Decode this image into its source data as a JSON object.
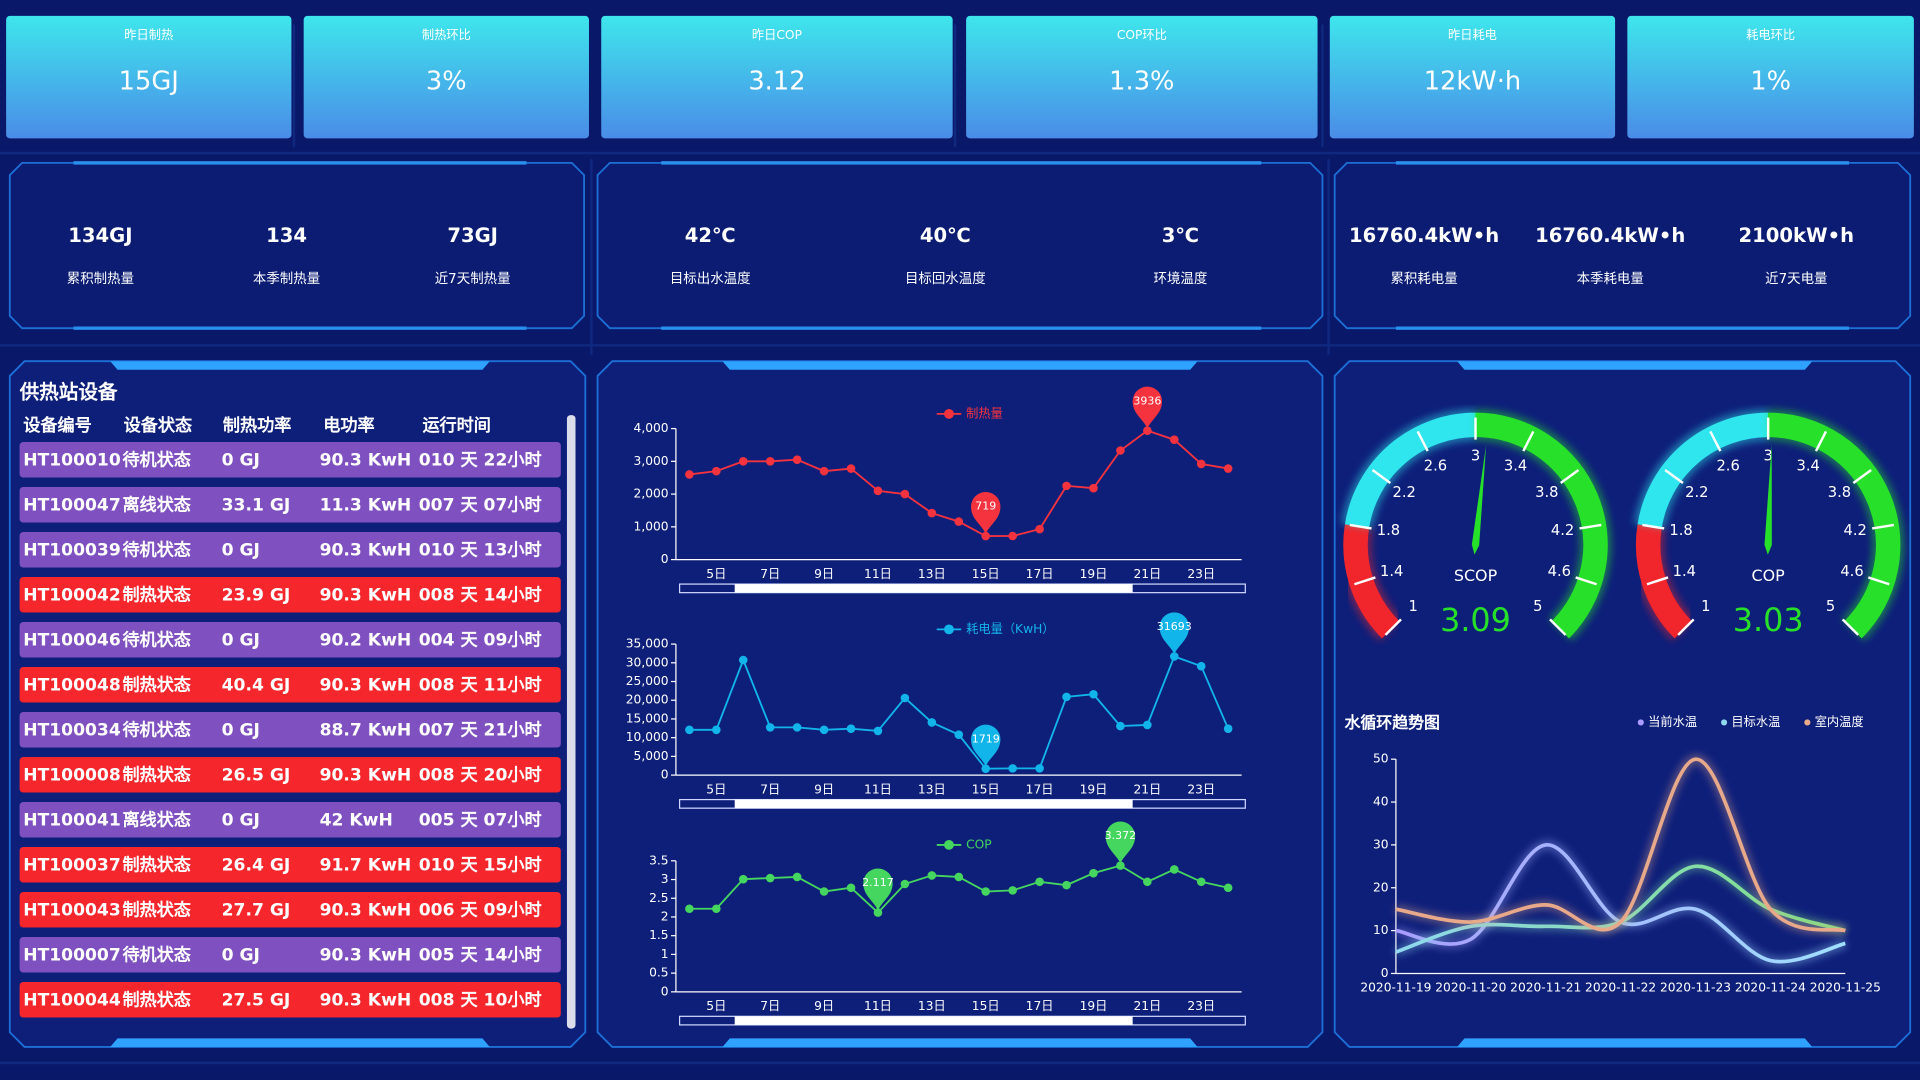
{
  "kpis": [
    {
      "label": "昨日制热",
      "value": "15GJ"
    },
    {
      "label": "制热环比",
      "value": "3%"
    },
    {
      "label": "昨日COP",
      "value": "3.12"
    },
    {
      "label": "COP环比",
      "value": "1.3%"
    },
    {
      "label": "昨日耗电",
      "value": "12kW·h"
    },
    {
      "label": "耗电环比",
      "value": "1%"
    }
  ],
  "stats": [
    [
      {
        "value": "134GJ",
        "label": "累积制热量"
      },
      {
        "value": "134",
        "label": "本季制热量"
      },
      {
        "value": "73GJ",
        "label": "近7天制热量"
      }
    ],
    [
      {
        "value": "42℃",
        "label": "目标出水温度"
      },
      {
        "value": "40℃",
        "label": "目标回水温度"
      },
      {
        "value": "3℃",
        "label": "环境温度"
      }
    ],
    [
      {
        "value": "16760.4kW•h",
        "label": "累积耗电量"
      },
      {
        "value": "16760.4kW•h",
        "label": "本季耗电量"
      },
      {
        "value": "2100kW•h",
        "label": "近7天电量"
      }
    ]
  ],
  "table": {
    "title": "供热站设备",
    "headers": [
      "设备编号",
      "设备状态",
      "制热功率",
      "电功率",
      "运行时间"
    ],
    "rows": [
      [
        "HT100010",
        "待机状态",
        "0 GJ",
        "90.3 KwH",
        "010 天 22小时"
      ],
      [
        "HT100047",
        "离线状态",
        "33.1 GJ",
        "11.3 KwH",
        "007 天 07小时"
      ],
      [
        "HT100039",
        "待机状态",
        "0 GJ",
        "90.3 KwH",
        "010 天 13小时"
      ],
      [
        "HT100042",
        "制热状态",
        "23.9 GJ",
        "90.3 KwH",
        "008 天 14小时"
      ],
      [
        "HT100046",
        "待机状态",
        "0 GJ",
        "90.2 KwH",
        "004 天 09小时"
      ],
      [
        "HT100048",
        "制热状态",
        "40.4 GJ",
        "90.3 KwH",
        "008 天 11小时"
      ],
      [
        "HT100034",
        "待机状态",
        "0 GJ",
        "88.7 KwH",
        "007 天 21小时"
      ],
      [
        "HT100008",
        "制热状态",
        "26.5 GJ",
        "90.3 KwH",
        "008 天 20小时"
      ],
      [
        "HT100041",
        "离线状态",
        "0 GJ",
        "42 KwH",
        "005 天 07小时"
      ],
      [
        "HT100037",
        "制热状态",
        "26.4 GJ",
        "91.7 KwH",
        "010 天 15小时"
      ],
      [
        "HT100043",
        "制热状态",
        "27.7 GJ",
        "90.3 KwH",
        "006 天 09小时"
      ],
      [
        "HT100007",
        "待机状态",
        "0 GJ",
        "90.3 KwH",
        "005 天 14小时"
      ],
      [
        "HT100044",
        "制热状态",
        "27.5 GJ",
        "90.3 KwH",
        "008 天 10小时"
      ]
    ],
    "row_colors": [
      "#7f51c0",
      "#7f51c0",
      "#7f51c0",
      "#f5262c",
      "#7f51c0",
      "#f5262c",
      "#7f51c0",
      "#f5262c",
      "#7f51c0",
      "#f5262c",
      "#f5262c",
      "#7f51c0",
      "#f5262c"
    ]
  },
  "chart_data": [
    {
      "type": "line",
      "pins": true,
      "categories": [
        null,
        "5日",
        null,
        "7日",
        null,
        "9日",
        null,
        "11日",
        null,
        "13日",
        null,
        "15日",
        null,
        "17日",
        null,
        "19日",
        null,
        "21日",
        null,
        "23日",
        null
      ],
      "series": [
        {
          "name": "制热量",
          "color": "#f5333f",
          "values": [
            2600,
            2700,
            3000,
            3000,
            3050,
            2700,
            2780,
            2100,
            2000,
            1420,
            1160,
            719,
            720,
            930,
            2250,
            2180,
            3330,
            3936,
            3660,
            2920,
            2780
          ]
        }
      ],
      "ylim": [
        0,
        4000
      ],
      "yticks": [
        0,
        {
          "value": 1000,
          "label": "1,000"
        },
        {
          "value": 2000,
          "label": "2,000"
        },
        {
          "value": 3000,
          "label": "3,000"
        },
        {
          "value": 4000,
          "label": "4,000"
        }
      ]
    },
    {
      "type": "line",
      "pins": true,
      "categories": [
        null,
        "5日",
        null,
        "7日",
        null,
        "9日",
        null,
        "11日",
        null,
        "13日",
        null,
        "15日",
        null,
        "17日",
        null,
        "19日",
        null,
        "21日",
        null,
        "23日",
        null
      ],
      "series": [
        {
          "name": "耗电量（KwH）",
          "color": "#12b5ea",
          "values": [
            12100,
            12100,
            30750,
            12750,
            12750,
            12100,
            12400,
            11800,
            20600,
            14070,
            10800,
            1719,
            1800,
            1800,
            20900,
            21600,
            13100,
            13400,
            31693,
            29100,
            12400
          ]
        }
      ],
      "ylim": [
        0,
        35000
      ],
      "yticks": [
        0,
        {
          "value": 5000,
          "label": "5,000"
        },
        {
          "value": 10000,
          "label": "10,000"
        },
        {
          "value": 15000,
          "label": "15,000"
        },
        {
          "value": 20000,
          "label": "20,000"
        },
        {
          "value": 25000,
          "label": "25,000"
        },
        {
          "value": 30000,
          "label": "30,000"
        },
        {
          "value": 35000,
          "label": "35,000"
        }
      ]
    },
    {
      "type": "line",
      "pins": true,
      "categories": [
        null,
        "5日",
        null,
        "7日",
        null,
        "9日",
        null,
        "11日",
        null,
        "13日",
        null,
        "15日",
        null,
        "17日",
        null,
        "19日",
        null,
        "21日",
        null,
        "23日",
        null
      ],
      "series": [
        {
          "name": "COP",
          "color": "#45d65f",
          "values": [
            2.22,
            2.22,
            3.01,
            3.04,
            3.07,
            2.68,
            2.78,
            2.117,
            2.88,
            3.11,
            3.07,
            2.68,
            2.71,
            2.94,
            2.85,
            3.17,
            3.372,
            2.94,
            3.27,
            2.94,
            2.78
          ]
        }
      ],
      "ylim": [
        0,
        3.5
      ],
      "yticks": [
        0,
        0.5,
        1,
        1.5,
        2,
        2.5,
        3,
        3.5
      ]
    },
    {
      "type": "gauge",
      "name": "SCOP",
      "value": 3.09,
      "range": [
        1,
        5
      ],
      "ticks": [
        1,
        1.4,
        1.8,
        2.2,
        2.6,
        3,
        3.4,
        3.8,
        4.2,
        4.6,
        5
      ],
      "bands": [
        {
          "to": 1.8,
          "color": "#f0262c"
        },
        {
          "to": 3,
          "color": "#2fe6ee"
        },
        {
          "to": 5,
          "color": "#27e02a"
        }
      ],
      "value_color": "#27e02a"
    },
    {
      "type": "gauge",
      "name": "COP",
      "value": 3.03,
      "range": [
        1,
        5
      ],
      "ticks": [
        1,
        1.4,
        1.8,
        2.2,
        2.6,
        3,
        3.4,
        3.8,
        4.2,
        4.6,
        5
      ],
      "bands": [
        {
          "to": 1.8,
          "color": "#f0262c"
        },
        {
          "to": 3,
          "color": "#2fe6ee"
        },
        {
          "to": 5,
          "color": "#27e02a"
        }
      ],
      "value_color": "#27e02a"
    },
    {
      "type": "line",
      "smooth": true,
      "title": "水循环趋势图",
      "legend": "top-right",
      "categories": [
        "2020-11-19",
        "2020-11-20",
        "2020-11-21",
        "2020-11-22",
        "2020-11-23",
        "2020-11-24",
        "2020-11-25"
      ],
      "series": [
        {
          "name": "当前水温",
          "colors": [
            "#a99bff",
            "#9fe0ff"
          ],
          "values": [
            10,
            8,
            30,
            12,
            15,
            3,
            7
          ]
        },
        {
          "name": "目标水温",
          "colors": [
            "#8fd8ef",
            "#7ee07f"
          ],
          "values": [
            5,
            11,
            11,
            12,
            25,
            15,
            10
          ]
        },
        {
          "name": "室内温度",
          "colors": [
            "#e8a98a",
            "#e8a98a"
          ],
          "values": [
            15,
            12,
            16,
            12,
            50,
            15,
            10
          ]
        }
      ],
      "ylim": [
        0,
        50
      ],
      "yticks": [
        0,
        10,
        20,
        30,
        40,
        50
      ]
    }
  ]
}
